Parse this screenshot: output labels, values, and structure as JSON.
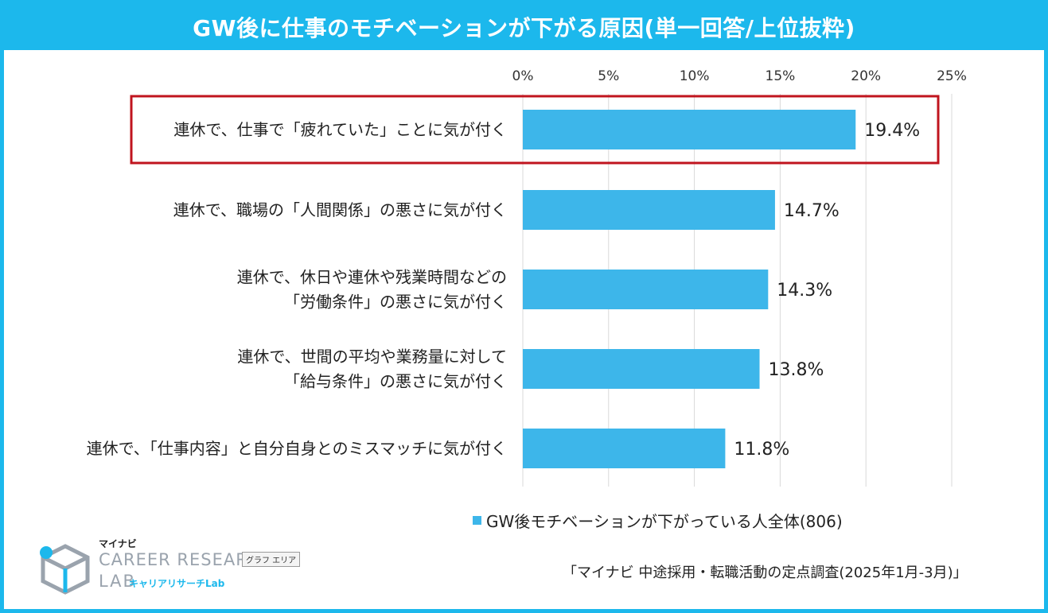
{
  "title": "GW後に仕事のモチベーションが下がる原因(単一回答/上位抜粋)",
  "chart_data": {
    "type": "bar",
    "orientation": "horizontal",
    "categories": [
      [
        "連休で、仕事で「疲れていた」ことに気が付く"
      ],
      [
        "連休で、職場の「人間関係」の悪さに気が付く"
      ],
      [
        "連休で、休日や連休や残業時間などの",
        "「労働条件」の悪さに気が付く"
      ],
      [
        "連休で、世間の平均や業務量に対して",
        "「給与条件」の悪さに気が付く"
      ],
      [
        "連休で、「仕事内容」と自分自身とのミスマッチに気が付く"
      ]
    ],
    "series": [
      {
        "name": "GW後モチベーションが下がっている人全体(806)",
        "values": [
          19.4,
          14.7,
          14.3,
          13.8,
          11.8
        ],
        "labels": [
          "19.4%",
          "14.7%",
          "14.3%",
          "13.8%",
          "11.8%"
        ]
      }
    ],
    "ticks": [
      "0%",
      "5%",
      "10%",
      "15%",
      "20%",
      "25%"
    ],
    "xlim": [
      0,
      25
    ],
    "grid": true,
    "highlight_index": 0,
    "legend_position": "bottom",
    "colors": {
      "bar": "#3db6ea",
      "highlight_border": "#c0141e",
      "grid": "#d9d9d9",
      "frame": "#1cb8ec"
    }
  },
  "source": "「マイナビ 中途採用・転職活動の定点調査(2025年1月-3月)」",
  "logo": {
    "brand": "マイナビ",
    "line1": "CAREER RESEARCH",
    "line2": "LAB",
    "sub": "キャリアリサーチLab"
  },
  "tooltip": "グラフ エリア"
}
